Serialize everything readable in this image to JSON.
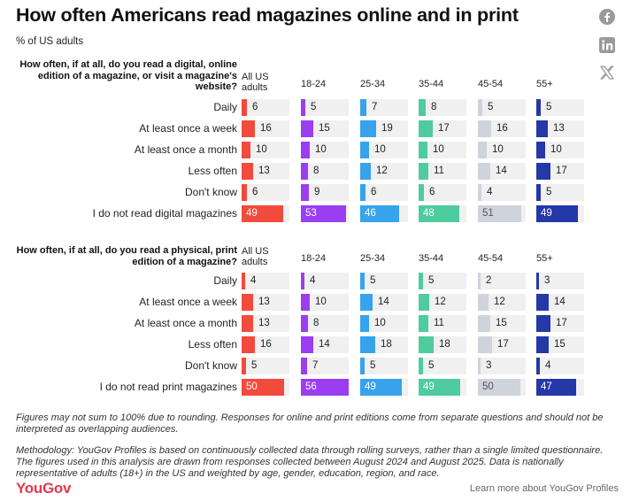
{
  "title": "How often Americans read magazines online and in print",
  "subtitle": "% of US adults",
  "share_icons": [
    "facebook-icon",
    "linkedin-icon",
    "x-icon"
  ],
  "footnote": "Figures may not sum to 100% due to rounding. Responses for online and print editions come from separate questions and should not be interpreted as overlapping audiences.",
  "methodology": "Methodology: YouGov Profiles is based on continuously collected data through rolling surveys, rather than a single limited questionnaire. The figures used in this analysis are drawn from responses collected between August 2024 and August 2025. Data is nationally representative of adults (18+) in the US and weighted by age, gender, education, region, and race.",
  "brand": "YouGov",
  "learn_more": "Learn more about YouGov Profiles",
  "colors": {
    "All US adults": "#f24a3c",
    "18-24": "#9b3df0",
    "25-34": "#36a3ec",
    "35-44": "#4ecb9f",
    "45-54": "#cfd3dc",
    "55+": "#2438a8",
    "track": "#f0f0f0"
  },
  "chart_data": [
    {
      "type": "bar",
      "title": "How often, if at all, do you read a digital, online edition of a magazine, or visit a magazine's website?",
      "columns": [
        "All US adults",
        "18-24",
        "25-34",
        "35-44",
        "45-54",
        "55+"
      ],
      "categories": [
        "Daily",
        "At least once a week",
        "At least once a month",
        "Less often",
        "Don't know",
        "I do not read digital magazines"
      ],
      "series": [
        {
          "name": "All US adults",
          "values": [
            6,
            16,
            10,
            13,
            6,
            49
          ]
        },
        {
          "name": "18-24",
          "values": [
            5,
            15,
            10,
            8,
            9,
            53
          ]
        },
        {
          "name": "25-34",
          "values": [
            7,
            19,
            10,
            12,
            6,
            46
          ]
        },
        {
          "name": "35-44",
          "values": [
            8,
            17,
            10,
            11,
            6,
            48
          ]
        },
        {
          "name": "45-54",
          "values": [
            5,
            16,
            10,
            14,
            4,
            51
          ]
        },
        {
          "name": "55+",
          "values": [
            5,
            13,
            10,
            17,
            5,
            49
          ]
        }
      ]
    },
    {
      "type": "bar",
      "title": "How often, if at all, do you read a physical, print edition of a magazine?",
      "columns": [
        "All US adults",
        "18-24",
        "25-34",
        "35-44",
        "45-54",
        "55+"
      ],
      "categories": [
        "Daily",
        "At least once a week",
        "At least once a month",
        "Less often",
        "Don't know",
        "I do not read print magazines"
      ],
      "series": [
        {
          "name": "All US adults",
          "values": [
            4,
            13,
            13,
            16,
            5,
            50
          ]
        },
        {
          "name": "18-24",
          "values": [
            4,
            10,
            8,
            14,
            7,
            56
          ]
        },
        {
          "name": "25-34",
          "values": [
            5,
            14,
            10,
            18,
            5,
            49
          ]
        },
        {
          "name": "35-44",
          "values": [
            5,
            12,
            11,
            18,
            5,
            49
          ]
        },
        {
          "name": "45-54",
          "values": [
            2,
            12,
            15,
            17,
            3,
            50
          ]
        },
        {
          "name": "55+",
          "values": [
            3,
            14,
            17,
            15,
            4,
            47
          ]
        }
      ]
    }
  ]
}
